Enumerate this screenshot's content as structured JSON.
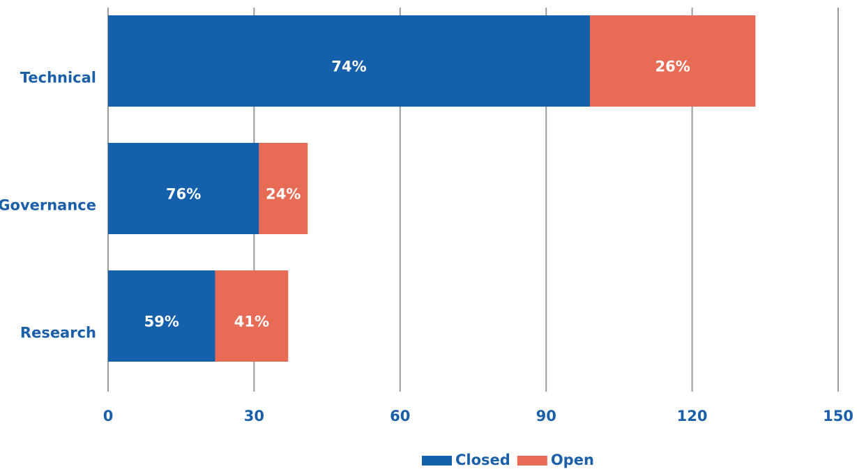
{
  "chart_data": {
    "type": "stacked_barh",
    "categories": [
      "Technical",
      "Governance",
      "Research"
    ],
    "series": [
      {
        "name": "Closed",
        "color": "#1560ab",
        "values": [
          99,
          31,
          22
        ],
        "value_labels": [
          "74%",
          "76%",
          "59%"
        ]
      },
      {
        "name": "Open",
        "color": "#e86b55",
        "values": [
          34,
          10,
          15
        ],
        "value_labels": [
          "26%",
          "24%",
          "41%"
        ]
      }
    ],
    "xlim": [
      0,
      150
    ],
    "xticks": [
      0,
      30,
      60,
      90,
      120,
      150
    ],
    "grid": true,
    "legend": "bottom"
  }
}
